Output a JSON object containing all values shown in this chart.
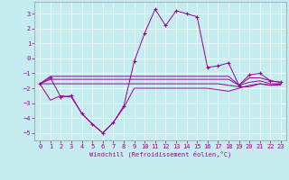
{
  "xlabel": "Windchill (Refroidissement éolien,°C)",
  "background_color": "#c5ecee",
  "line_color": "#990099",
  "border_color": "#999999",
  "grid_color": "#ffffff",
  "xlim": [
    -0.5,
    23.5
  ],
  "ylim": [
    -5.5,
    3.8
  ],
  "yticks": [
    3,
    2,
    1,
    0,
    -1,
    -2,
    -3,
    -4,
    -5
  ],
  "xticks": [
    0,
    1,
    2,
    3,
    4,
    5,
    6,
    7,
    8,
    9,
    10,
    11,
    12,
    13,
    14,
    15,
    16,
    17,
    18,
    19,
    20,
    21,
    22,
    23
  ],
  "series": [
    {
      "x": [
        0,
        1,
        2,
        3,
        4,
        5,
        6,
        7,
        8,
        9,
        10,
        11,
        12,
        13,
        14,
        15,
        16,
        17,
        18,
        19,
        20,
        21,
        22,
        23
      ],
      "y": [
        -1.7,
        -1.3,
        -2.6,
        -2.5,
        -3.7,
        -4.4,
        -5.0,
        -4.3,
        -3.2,
        -0.2,
        1.7,
        3.3,
        2.2,
        3.2,
        3.0,
        2.8,
        -0.6,
        -0.5,
        -0.3,
        -1.8,
        -1.1,
        -1.0,
        -1.5,
        -1.6
      ],
      "marker": true
    },
    {
      "x": [
        0,
        1,
        2,
        3,
        4,
        5,
        6,
        7,
        8,
        9,
        10,
        11,
        12,
        13,
        14,
        15,
        16,
        17,
        18,
        19,
        20,
        21,
        22,
        23
      ],
      "y": [
        -1.7,
        -1.2,
        -1.2,
        -1.2,
        -1.2,
        -1.2,
        -1.2,
        -1.2,
        -1.2,
        -1.2,
        -1.2,
        -1.2,
        -1.2,
        -1.2,
        -1.2,
        -1.2,
        -1.2,
        -1.2,
        -1.2,
        -1.8,
        -1.3,
        -1.3,
        -1.5,
        -1.6
      ],
      "marker": false
    },
    {
      "x": [
        0,
        1,
        2,
        3,
        4,
        5,
        6,
        7,
        8,
        9,
        10,
        11,
        12,
        13,
        14,
        15,
        16,
        17,
        18,
        19,
        20,
        21,
        22,
        23
      ],
      "y": [
        -1.7,
        -1.4,
        -1.4,
        -1.4,
        -1.4,
        -1.4,
        -1.4,
        -1.4,
        -1.4,
        -1.4,
        -1.4,
        -1.4,
        -1.4,
        -1.4,
        -1.4,
        -1.4,
        -1.4,
        -1.4,
        -1.4,
        -1.8,
        -1.6,
        -1.5,
        -1.7,
        -1.7
      ],
      "marker": false
    },
    {
      "x": [
        0,
        1,
        2,
        3,
        4,
        5,
        6,
        7,
        8,
        9,
        10,
        11,
        12,
        13,
        14,
        15,
        16,
        17,
        18,
        19,
        20,
        21,
        22,
        23
      ],
      "y": [
        -1.7,
        -1.7,
        -1.7,
        -1.7,
        -1.7,
        -1.7,
        -1.7,
        -1.7,
        -1.7,
        -1.7,
        -1.7,
        -1.7,
        -1.7,
        -1.7,
        -1.7,
        -1.7,
        -1.7,
        -1.7,
        -1.8,
        -1.9,
        -1.9,
        -1.7,
        -1.8,
        -1.8
      ],
      "marker": false
    },
    {
      "x": [
        0,
        1,
        2,
        3,
        4,
        5,
        6,
        7,
        8,
        9,
        10,
        11,
        12,
        13,
        14,
        15,
        16,
        17,
        18,
        19,
        20,
        21,
        22,
        23
      ],
      "y": [
        -1.7,
        -2.8,
        -2.5,
        -2.6,
        -3.7,
        -4.4,
        -5.0,
        -4.3,
        -3.3,
        -2.0,
        -2.0,
        -2.0,
        -2.0,
        -2.0,
        -2.0,
        -2.0,
        -2.0,
        -2.1,
        -2.2,
        -2.0,
        -1.8,
        -1.7,
        -1.8,
        -1.7
      ],
      "marker": false
    }
  ]
}
